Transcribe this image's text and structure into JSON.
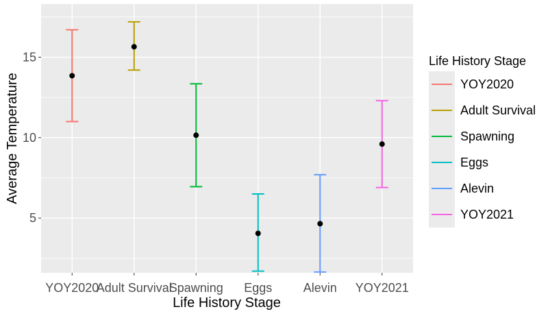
{
  "chart_data": {
    "type": "errorbar",
    "xlabel": "Life History Stage",
    "ylabel": "Average Temperature",
    "ylim": [
      1.6,
      18.3
    ],
    "yticks": [
      5,
      10,
      15
    ],
    "grid": true,
    "categories": [
      "YOY2020",
      "Adult Survival",
      "Spawning",
      "Eggs",
      "Alevin",
      "YOY2021"
    ],
    "points": [
      {
        "stage": "YOY2020",
        "mean": 13.85,
        "lower": 11.0,
        "upper": 16.7,
        "color": "#F8766D"
      },
      {
        "stage": "Adult Survival",
        "mean": 15.65,
        "lower": 14.2,
        "upper": 17.2,
        "color": "#B79F00"
      },
      {
        "stage": "Spawning",
        "mean": 10.15,
        "lower": 6.95,
        "upper": 13.35,
        "color": "#00BA38"
      },
      {
        "stage": "Eggs",
        "mean": 4.05,
        "lower": 1.7,
        "upper": 6.5,
        "color": "#00BFC4"
      },
      {
        "stage": "Alevin",
        "mean": 4.65,
        "lower": 1.65,
        "upper": 7.7,
        "color": "#619CFF"
      },
      {
        "stage": "YOY2021",
        "mean": 9.6,
        "lower": 6.9,
        "upper": 12.3,
        "color": "#F564E3"
      }
    ],
    "legend": {
      "title": "Life History Stage",
      "position": "right"
    },
    "panel_background": "#EBEBEB",
    "grid_color": "#FFFFFF",
    "point_color": "#000000"
  }
}
